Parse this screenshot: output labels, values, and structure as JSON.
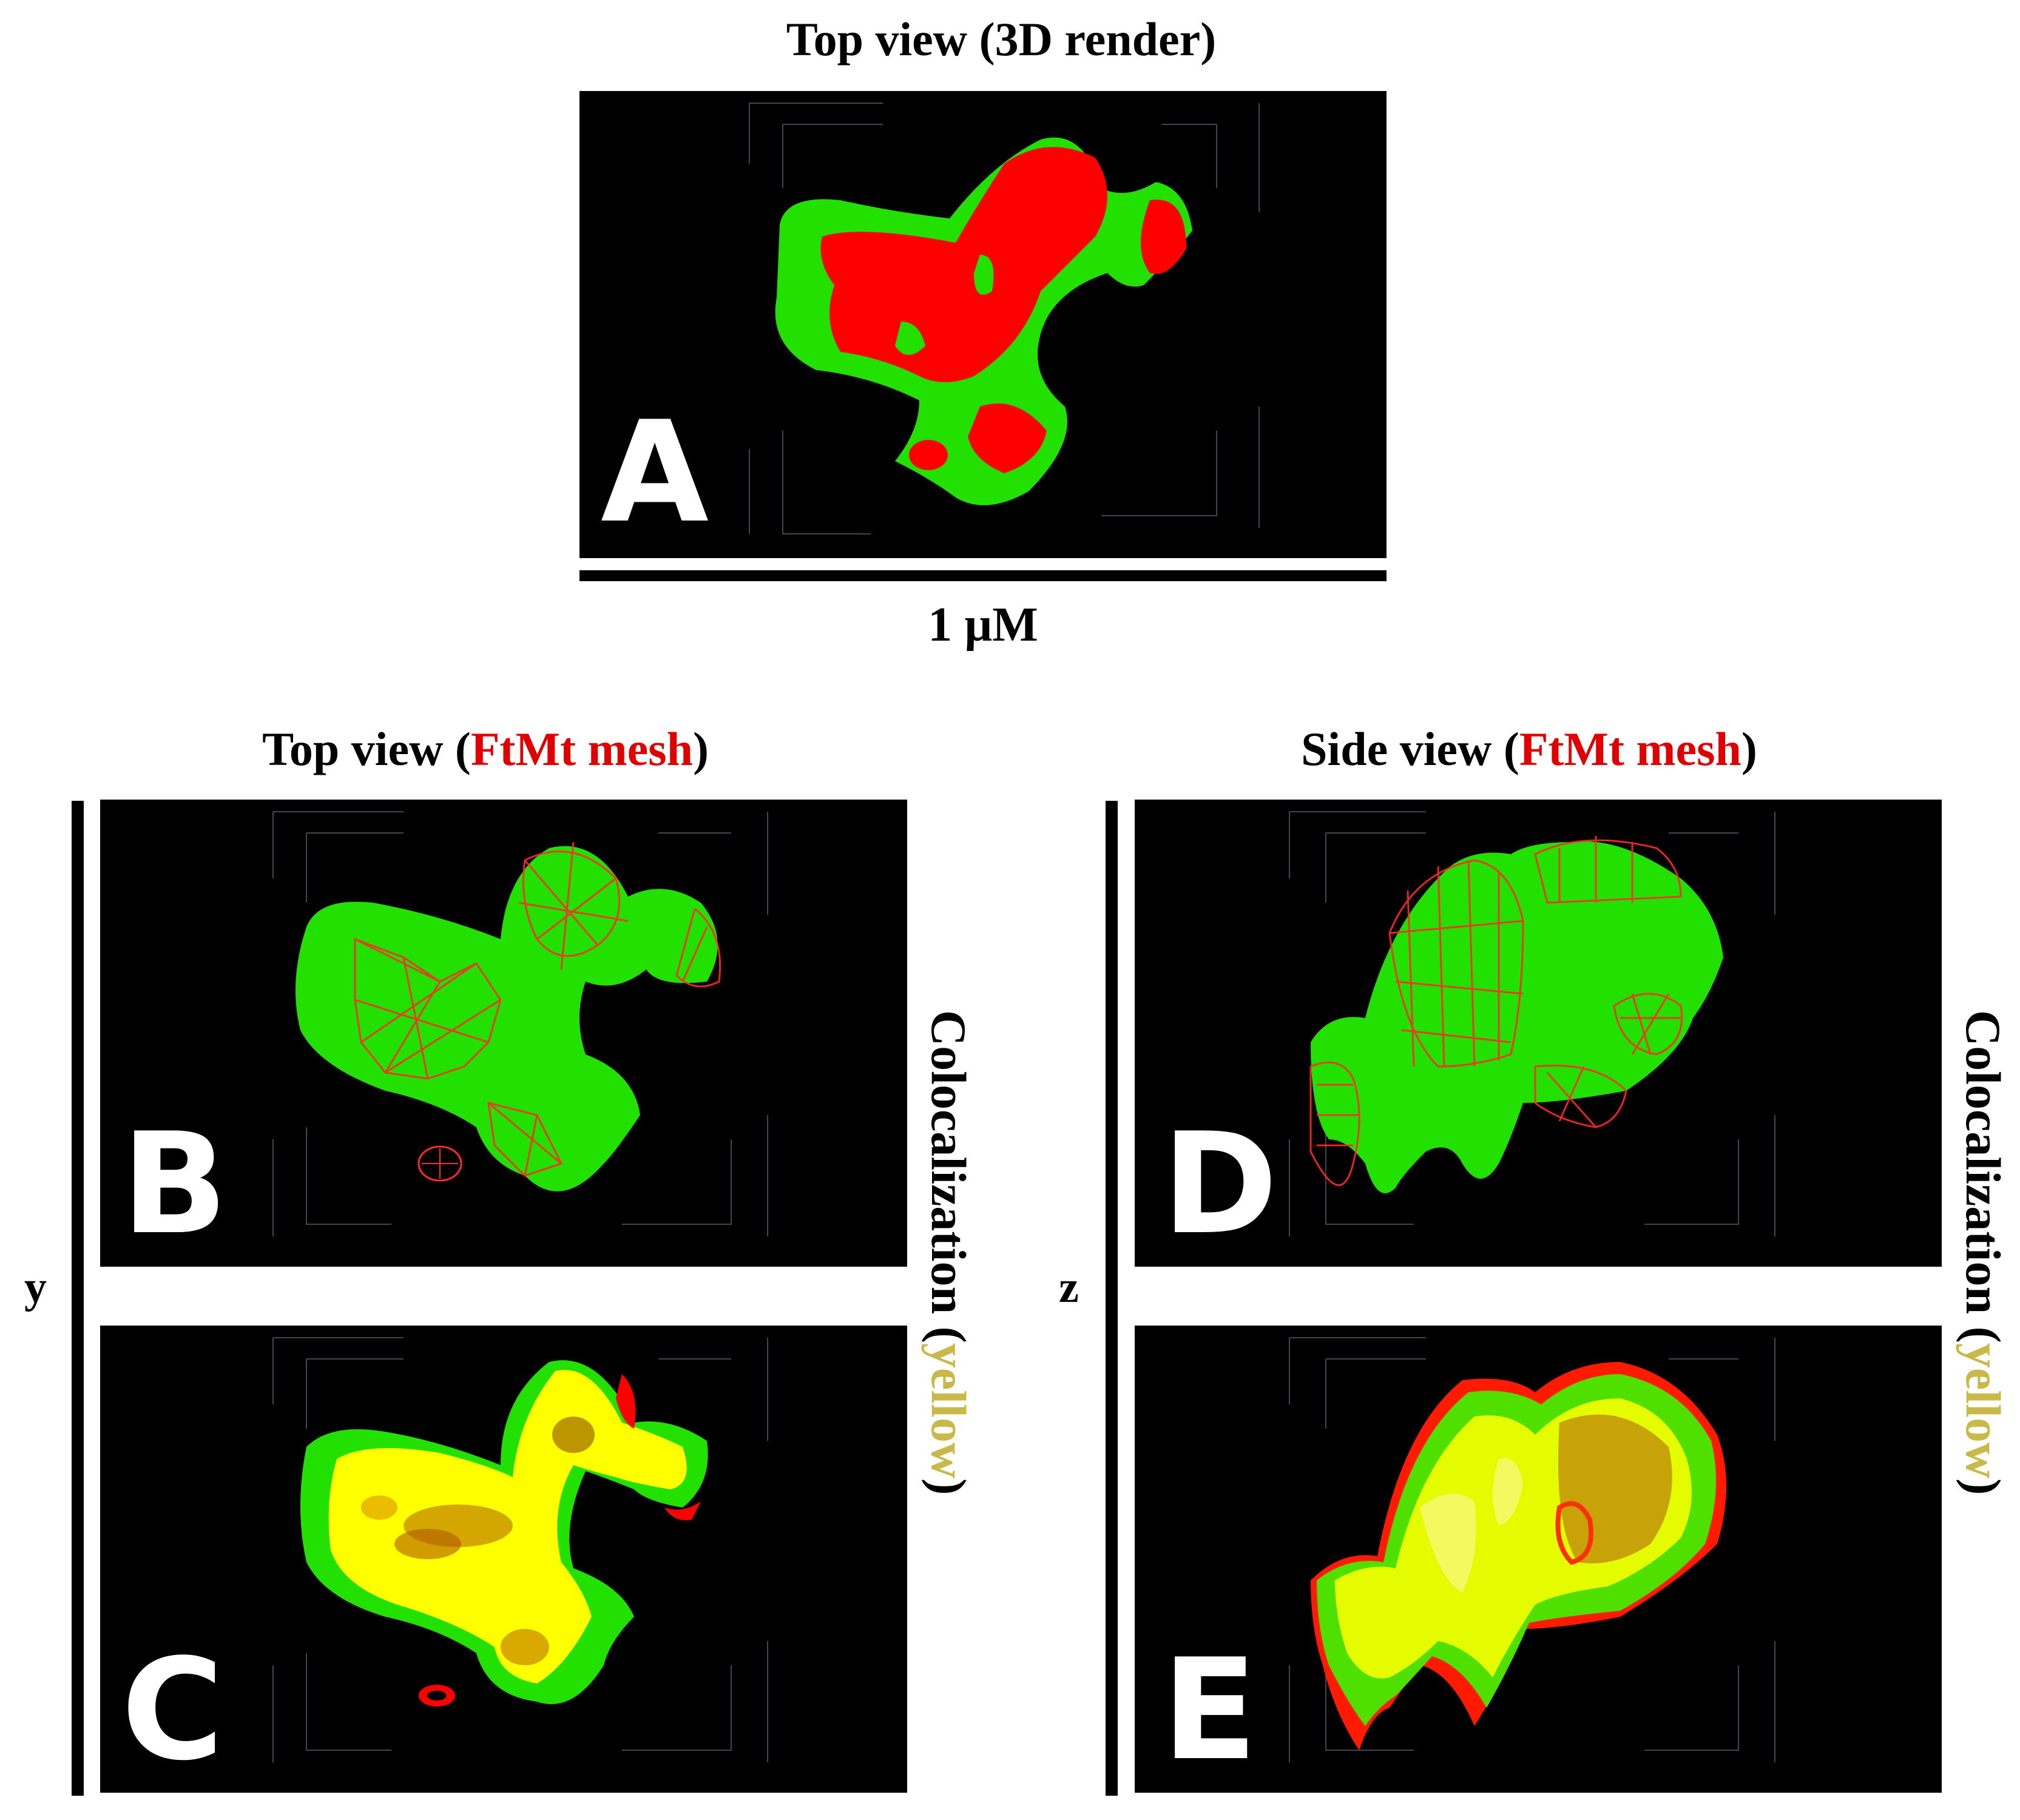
{
  "panel_a": {
    "title": "Top view (3D render)",
    "letter": "A",
    "scale_label": "1 µM"
  },
  "panel_b": {
    "title_prefix": "Top view (",
    "title_highlight": "FtMt mesh",
    "title_suffix": ")",
    "letter": "B"
  },
  "panel_c": {
    "letter": "C"
  },
  "panel_d": {
    "title_prefix": "Side view (",
    "title_highlight": "FtMt mesh",
    "title_suffix": ")",
    "letter": "D"
  },
  "panel_e": {
    "letter": "E"
  },
  "left_axis": "y",
  "right_axis": "z",
  "colocalization": {
    "prefix": "Colocalization (",
    "highlight": "yellow",
    "suffix": ")"
  },
  "colors": {
    "green_channel": "#22ee00",
    "red_channel": "#ff0000",
    "colocalization": "#ffff00",
    "background": "#000000"
  }
}
